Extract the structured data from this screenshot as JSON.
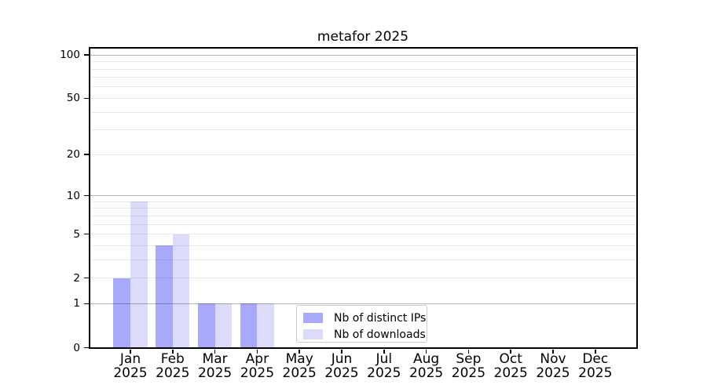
{
  "chart_data": {
    "type": "bar",
    "title": "metafor 2025",
    "categories": [
      "Jan",
      "Feb",
      "Mar",
      "Apr",
      "May",
      "Jun",
      "Jul",
      "Aug",
      "Sep",
      "Oct",
      "Nov",
      "Dec"
    ],
    "x_year_label": "2025",
    "series": [
      {
        "name": "Nb of distinct IPs",
        "color": "#a9a9fb",
        "values": [
          2,
          4,
          1,
          1,
          0,
          0,
          0,
          0,
          0,
          0,
          0,
          0
        ]
      },
      {
        "name": "Nb of downloads",
        "color": "#dcdcfa",
        "values": [
          9,
          5,
          1,
          1,
          0,
          0,
          0,
          0,
          0,
          0,
          0,
          0
        ]
      }
    ],
    "yscale": "log1p",
    "ylim": [
      0,
      112
    ],
    "ytick_values": [
      0,
      1,
      2,
      5,
      10,
      20,
      50,
      100
    ],
    "ytick_labels": [
      "0",
      "1",
      "2",
      "5",
      "10",
      "20",
      "50",
      "100"
    ],
    "grid_major_values": [
      1,
      10,
      100
    ],
    "grid_minor_values": [
      2,
      3,
      4,
      5,
      6,
      7,
      8,
      9,
      20,
      30,
      40,
      50,
      60,
      70,
      80,
      90
    ],
    "grid_on": true,
    "legend_position": "lower center",
    "colors": {
      "axis": "#000000",
      "background": "#ffffff",
      "grid_major": "rgba(0,0,0,0.29)",
      "grid_minor": "rgba(0,0,0,0.085)",
      "legend_border": "#cccccc"
    }
  }
}
